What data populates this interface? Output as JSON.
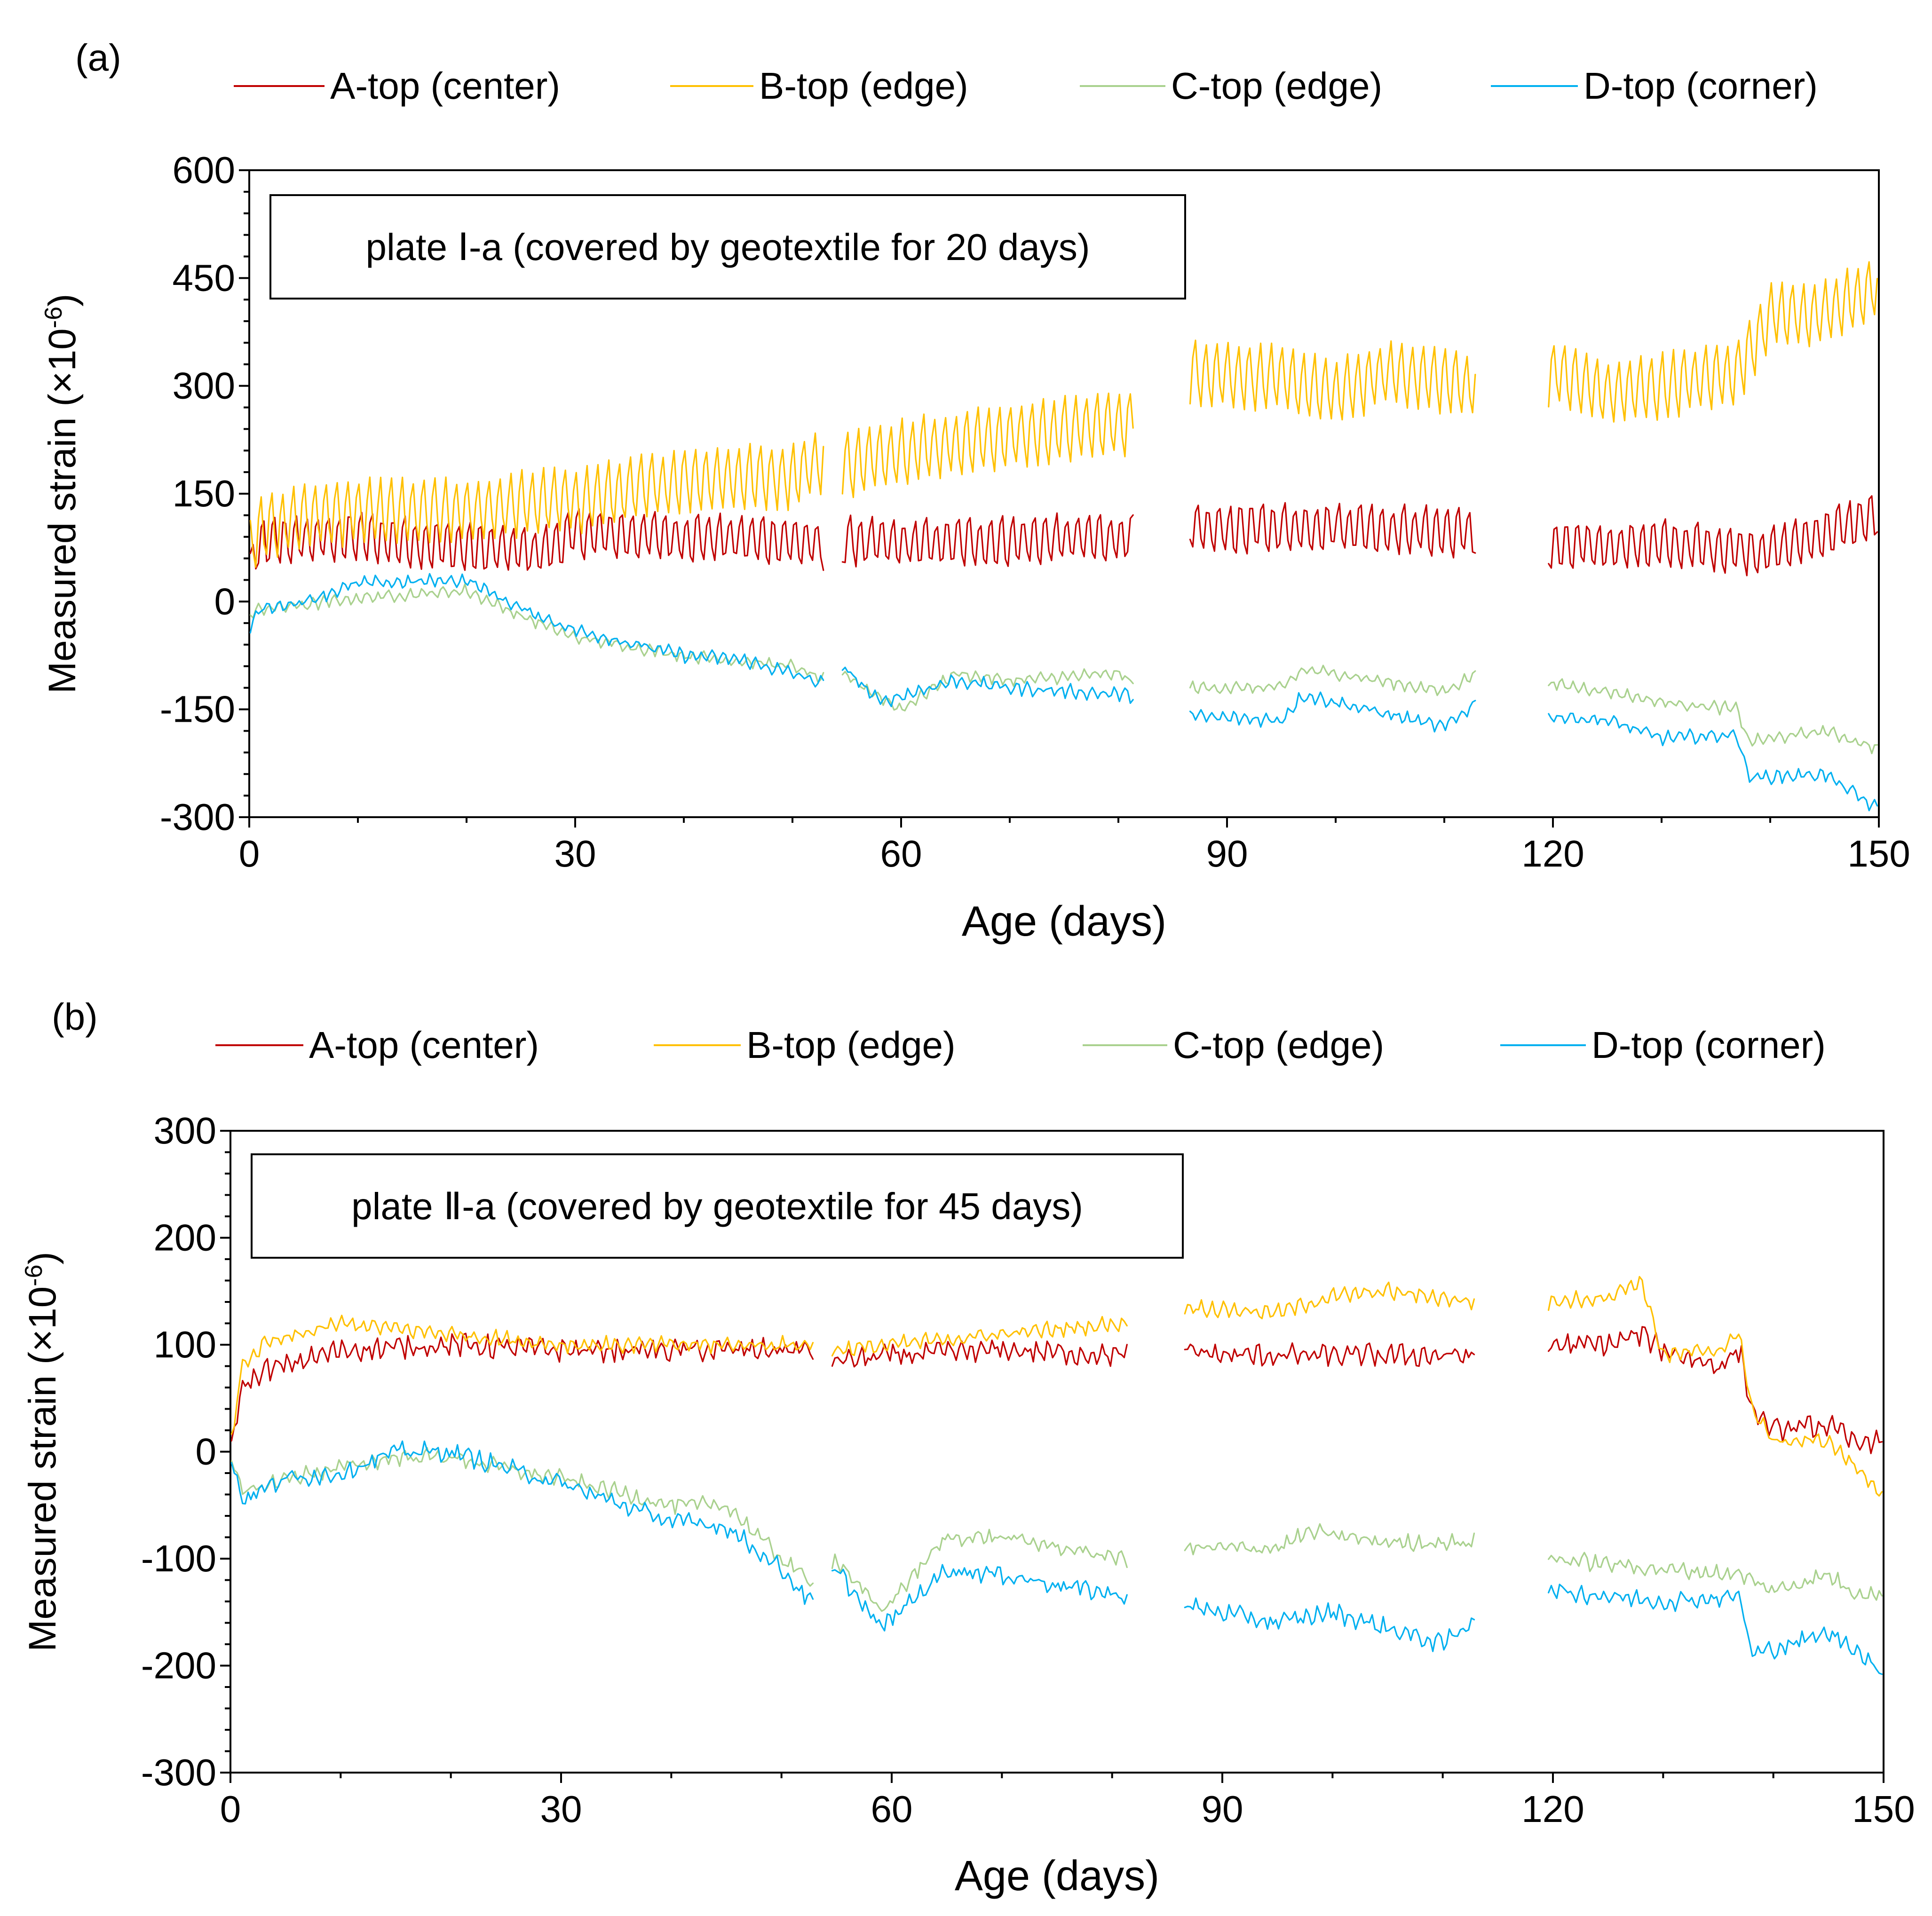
{
  "chart_data": [
    {
      "type": "line",
      "panel_label": "(a)",
      "annotation": "plate Ⅰ-a (covered by geotextile for 20 days)",
      "xlabel": "Age (days)",
      "ylabel_main": "Measured strain (×10",
      "ylabel_exp": "-6",
      "ylabel_close": ")",
      "xlim": [
        0,
        150
      ],
      "ylim": [
        -300,
        600
      ],
      "xticks": [
        0,
        30,
        60,
        90,
        120,
        150
      ],
      "yticks": [
        -300,
        -150,
        0,
        150,
        300,
        450,
        600
      ],
      "xtick_labels": [
        "0",
        "30",
        "60",
        "90",
        "120",
        "150"
      ],
      "ytick_labels": [
        "-300",
        "-150",
        "0",
        "150",
        "300",
        "450",
        "600"
      ],
      "gaps": [
        [
          53,
          54.5
        ],
        [
          81.5,
          86.5
        ],
        [
          113,
          119.5
        ]
      ],
      "series": [
        {
          "name": "A-top (center)",
          "color": "#C00000",
          "osc": 35,
          "noise": 8,
          "x": [
            0,
            1,
            3,
            10,
            20,
            27,
            30,
            50,
            53,
            55,
            60,
            81,
            87,
            100,
            113,
            120,
            130,
            140,
            150
          ],
          "y": [
            40,
            80,
            85,
            90,
            75,
            70,
            95,
            85,
            75,
            85,
            80,
            90,
            100,
            105,
            95,
            75,
            80,
            70,
            120
          ]
        },
        {
          "name": "B-top (edge)",
          "color": "#FFC000",
          "osc": 45,
          "noise": 6,
          "x": [
            0,
            1,
            5,
            10,
            20,
            27,
            30,
            40,
            50,
            53,
            55,
            60,
            70,
            81,
            87,
            95,
            100,
            105,
            113,
            120,
            125,
            130,
            137,
            140,
            145,
            150
          ],
          "y": [
            70,
            100,
            120,
            125,
            125,
            140,
            140,
            170,
            175,
            200,
            190,
            210,
            230,
            250,
            320,
            310,
            290,
            320,
            300,
            320,
            290,
            300,
            320,
            400,
            400,
            440
          ]
        },
        {
          "name": "C-top (edge)",
          "color": "#A9D18E",
          "osc": 6,
          "noise": 4,
          "x": [
            0,
            1,
            5,
            10,
            20,
            25,
            30,
            40,
            50,
            53,
            55,
            60,
            65,
            70,
            80,
            81,
            87,
            95,
            97,
            100,
            110,
            113,
            120,
            125,
            130,
            137,
            138,
            145,
            150
          ],
          "y": [
            -20,
            -10,
            -5,
            5,
            15,
            -20,
            -50,
            -75,
            -90,
            -110,
            -105,
            -150,
            -100,
            -110,
            -100,
            -110,
            -120,
            -120,
            -95,
            -100,
            -125,
            -100,
            -115,
            -125,
            -140,
            -150,
            -195,
            -180,
            -205
          ]
        },
        {
          "name": "D-top (corner)",
          "color": "#00B0F0",
          "osc": 6,
          "noise": 5,
          "x": [
            0,
            1,
            5,
            10,
            20,
            25,
            30,
            40,
            45,
            50,
            53,
            55,
            58,
            65,
            70,
            81,
            87,
            95,
            97,
            100,
            110,
            113,
            120,
            125,
            130,
            137,
            138,
            145,
            147,
            150
          ],
          "y": [
            -40,
            -10,
            0,
            25,
            30,
            -10,
            -40,
            -75,
            -80,
            -100,
            -115,
            -95,
            -140,
            -110,
            -120,
            -130,
            -160,
            -165,
            -130,
            -140,
            -175,
            -140,
            -160,
            -165,
            -190,
            -185,
            -245,
            -240,
            -260,
            -290
          ]
        }
      ]
    },
    {
      "type": "line",
      "panel_label": "(b)",
      "annotation": "plate Ⅱ-a (covered by geotextile for 45 days)",
      "xlabel": "Age (days)",
      "ylabel_main": "Measured strain (×10",
      "ylabel_exp": "-6",
      "ylabel_close": ")",
      "xlim": [
        0,
        150
      ],
      "ylim": [
        -300,
        300
      ],
      "xticks": [
        0,
        30,
        60,
        90,
        120,
        150
      ],
      "yticks": [
        -300,
        -200,
        -100,
        0,
        100,
        200,
        300
      ],
      "xtick_labels": [
        "0",
        "30",
        "60",
        "90",
        "120",
        "150"
      ],
      "ytick_labels": [
        "-300",
        "-200",
        "-100",
        "0",
        "100",
        "200",
        "300"
      ],
      "gaps": [
        [
          53,
          54.5
        ],
        [
          81.5,
          86.5
        ],
        [
          113,
          119.5
        ]
      ],
      "series": [
        {
          "name": "A-top (center)",
          "color": "#C00000",
          "osc": 6,
          "noise": 7,
          "x": [
            0,
            1,
            3,
            10,
            20,
            30,
            50,
            53,
            55,
            60,
            70,
            81,
            87,
            90,
            100,
            113,
            120,
            125,
            128,
            130,
            135,
            137,
            138,
            140,
            145,
            147,
            150
          ],
          "y": [
            0,
            60,
            75,
            95,
            100,
            95,
            95,
            95,
            85,
            90,
            95,
            90,
            95,
            90,
            90,
            90,
            100,
            100,
            110,
            95,
            80,
            95,
            40,
            20,
            25,
            10,
            10
          ]
        },
        {
          "name": "B-top (edge)",
          "color": "#FFC000",
          "osc": 5,
          "noise": 4,
          "x": [
            0,
            1,
            3,
            10,
            20,
            30,
            50,
            53,
            55,
            60,
            70,
            81,
            87,
            95,
            100,
            105,
            113,
            120,
            125,
            128,
            130,
            135,
            137,
            138,
            140,
            145,
            150
          ],
          "y": [
            0,
            80,
            100,
            120,
            110,
            100,
            100,
            100,
            95,
            100,
            110,
            120,
            135,
            130,
            145,
            150,
            140,
            140,
            145,
            160,
            90,
            95,
            110,
            40,
            10,
            10,
            -40
          ]
        },
        {
          "name": "C-top (edge)",
          "color": "#A9D18E",
          "osc": 4,
          "noise": 5,
          "x": [
            0,
            1,
            5,
            10,
            15,
            20,
            27,
            30,
            40,
            45,
            50,
            53,
            55,
            59,
            65,
            70,
            81,
            87,
            95,
            98,
            105,
            113,
            120,
            125,
            130,
            137,
            140,
            145,
            147,
            150
          ],
          "y": [
            0,
            -40,
            -25,
            -15,
            -5,
            -5,
            -20,
            -25,
            -50,
            -50,
            -100,
            -125,
            -100,
            -150,
            -80,
            -80,
            -100,
            -90,
            -90,
            -75,
            -85,
            -85,
            -100,
            -105,
            -110,
            -115,
            -130,
            -115,
            -130,
            -135
          ]
        },
        {
          "name": "D-top (corner)",
          "color": "#00B0F0",
          "osc": 4,
          "noise": 6,
          "x": [
            0,
            1,
            5,
            10,
            15,
            20,
            25,
            30,
            40,
            45,
            50,
            53,
            55,
            59,
            65,
            70,
            81,
            87,
            95,
            100,
            110,
            113,
            120,
            125,
            130,
            137,
            138,
            145,
            147,
            150
          ],
          "y": [
            0,
            -45,
            -25,
            -20,
            0,
            0,
            -15,
            -30,
            -65,
            -70,
            -110,
            -145,
            -110,
            -165,
            -110,
            -115,
            -135,
            -145,
            -160,
            -150,
            -180,
            -155,
            -130,
            -135,
            -140,
            -135,
            -190,
            -170,
            -180,
            -210
          ]
        }
      ]
    }
  ]
}
